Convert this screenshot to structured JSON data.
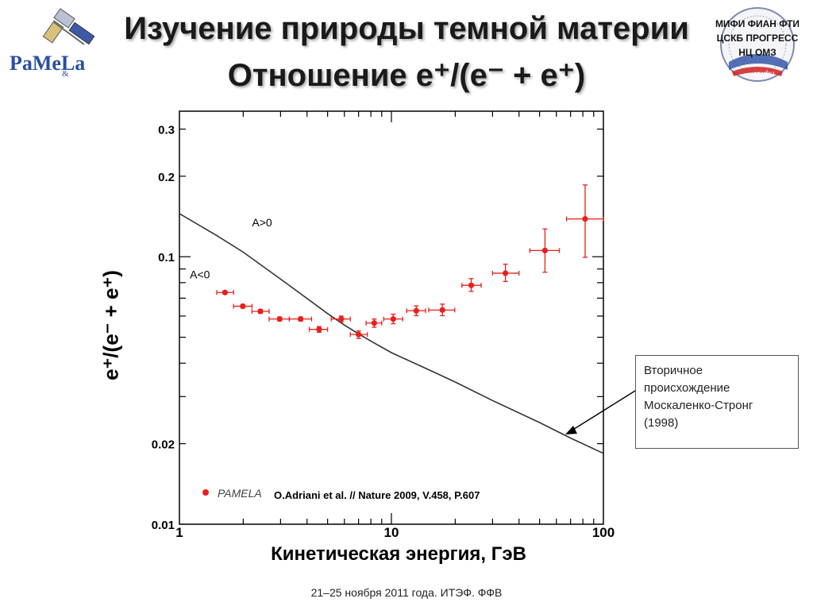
{
  "slide": {
    "title_line1": "Изучение природы темной материи",
    "title_line2": "Отношение e⁺/(e⁻ + e⁺)",
    "footer": "21–25 ноября 2011 года. ИТЭФ. ФФВ"
  },
  "logos": {
    "left": {
      "text1": "PaMeLa",
      "text2": "&",
      "icon": "satellite-icon"
    },
    "right": {
      "line1": "МИФИ  ФИАН  ФТИ",
      "line2": "ЦСКБ  ПРОГРЕСС",
      "line3": "НЦ  ОМЗ",
      "sub": "мифи",
      "icon": "russia-seal-icon"
    }
  },
  "annotation": {
    "lines": [
      "Вторичное",
      "происхождение",
      "Москаленко-Стронг",
      " (1998)"
    ]
  },
  "reference": "O.Adriani et al. // Nature 2009, V.458, P.607",
  "chart_data": {
    "type": "scatter",
    "xlabel": "Кинетическая энергия, ГэВ",
    "ylabel": "e⁺/(e⁻ + e⁺)",
    "xscale": "log",
    "yscale": "log",
    "xlim": [
      1,
      100
    ],
    "ylim": [
      0.01,
      0.35
    ],
    "xtick_labels": [
      "1",
      "10",
      "100"
    ],
    "ytick_labels": [
      {
        "value": 0.01,
        "label": "0.01"
      },
      {
        "value": 0.02,
        "label": "0.02"
      },
      {
        "value": 0.1,
        "label": "0.1"
      },
      {
        "value": 0.2,
        "label": "0.2"
      },
      {
        "value": 0.3,
        "label": "0.3"
      }
    ],
    "legend": {
      "label": "PAMELA",
      "position": "bottom-left",
      "color": "#e8201c"
    },
    "series": [
      {
        "name": "PAMELA",
        "color": "#e8201c",
        "points": [
          {
            "x": 1.64,
            "y": 0.0735,
            "xlo": 1.5,
            "xhi": 1.8,
            "ylo": 0.0725,
            "yhi": 0.0745
          },
          {
            "x": 1.99,
            "y": 0.0653,
            "xlo": 1.8,
            "xhi": 2.2,
            "ylo": 0.0643,
            "yhi": 0.0663
          },
          {
            "x": 2.41,
            "y": 0.0625,
            "xlo": 2.2,
            "xhi": 2.65,
            "ylo": 0.0615,
            "yhi": 0.0635
          },
          {
            "x": 2.97,
            "y": 0.0585,
            "xlo": 2.65,
            "xhi": 3.3,
            "ylo": 0.0575,
            "yhi": 0.0595
          },
          {
            "x": 3.73,
            "y": 0.0585,
            "xlo": 3.3,
            "xhi": 4.2,
            "ylo": 0.0575,
            "yhi": 0.0595
          },
          {
            "x": 4.56,
            "y": 0.0535,
            "xlo": 4.1,
            "xhi": 5.0,
            "ylo": 0.0522,
            "yhi": 0.0548
          },
          {
            "x": 5.8,
            "y": 0.0585,
            "xlo": 5.2,
            "xhi": 6.4,
            "ylo": 0.057,
            "yhi": 0.06
          },
          {
            "x": 7.0,
            "y": 0.0512,
            "xlo": 6.4,
            "xhi": 7.7,
            "ylo": 0.0495,
            "yhi": 0.0528
          },
          {
            "x": 8.3,
            "y": 0.0565,
            "xlo": 7.6,
            "xhi": 9.0,
            "ylo": 0.0545,
            "yhi": 0.0585
          },
          {
            "x": 10.2,
            "y": 0.0585,
            "xlo": 9.2,
            "xhi": 11.3,
            "ylo": 0.0562,
            "yhi": 0.061
          },
          {
            "x": 13.1,
            "y": 0.0628,
            "xlo": 11.8,
            "xhi": 14.5,
            "ylo": 0.0602,
            "yhi": 0.0655
          },
          {
            "x": 17.4,
            "y": 0.0632,
            "xlo": 15.0,
            "xhi": 19.9,
            "ylo": 0.0602,
            "yhi": 0.0665
          },
          {
            "x": 23.8,
            "y": 0.0782,
            "xlo": 21.5,
            "xhi": 26.5,
            "ylo": 0.0742,
            "yhi": 0.0828
          },
          {
            "x": 34.5,
            "y": 0.0868,
            "xlo": 30.0,
            "xhi": 40.0,
            "ylo": 0.0808,
            "yhi": 0.0938
          },
          {
            "x": 53.0,
            "y": 0.1055,
            "xlo": 45.0,
            "xhi": 62.0,
            "ylo": 0.0875,
            "yhi": 0.127
          },
          {
            "x": 82.0,
            "y": 0.1385,
            "xlo": 67.0,
            "xhi": 100.0,
            "ylo": 0.0995,
            "yhi": 0.1855
          }
        ]
      },
      {
        "name": "Вторичное происхождение",
        "type": "line",
        "color": "#333333",
        "points": [
          {
            "x": 1.0,
            "y": 0.145
          },
          {
            "x": 1.5,
            "y": 0.12
          },
          {
            "x": 2.0,
            "y": 0.104
          },
          {
            "x": 3.0,
            "y": 0.0825
          },
          {
            "x": 4.0,
            "y": 0.0698
          },
          {
            "x": 5.0,
            "y": 0.0613
          },
          {
            "x": 6.0,
            "y": 0.0555
          },
          {
            "x": 7.0,
            "y": 0.0515
          },
          {
            "x": 8.0,
            "y": 0.0484
          },
          {
            "x": 10.0,
            "y": 0.0438
          },
          {
            "x": 15.0,
            "y": 0.0378
          },
          {
            "x": 20.0,
            "y": 0.034
          },
          {
            "x": 30.0,
            "y": 0.029
          },
          {
            "x": 50.0,
            "y": 0.024
          },
          {
            "x": 70.0,
            "y": 0.021
          },
          {
            "x": 100.0,
            "y": 0.0184
          }
        ]
      }
    ],
    "curve_labels": [
      {
        "text": "A>0",
        "x": 2.2,
        "y": 0.13
      },
      {
        "text": "A<0",
        "x": 1.12,
        "y": 0.083
      }
    ]
  }
}
